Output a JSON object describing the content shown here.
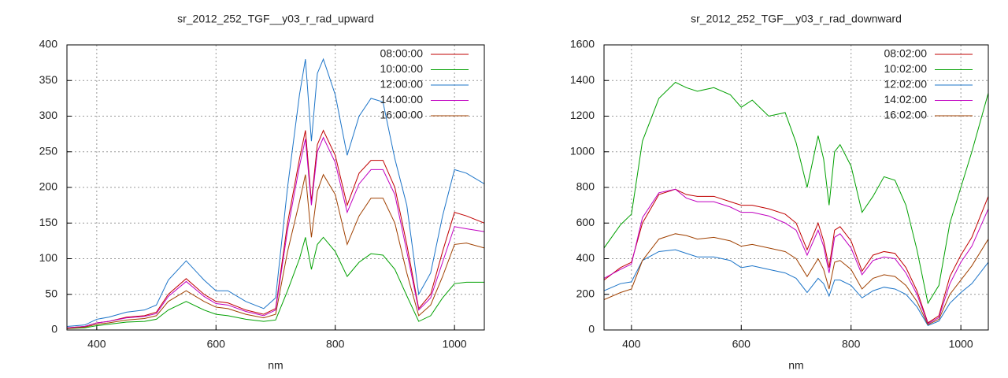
{
  "chart_data": [
    {
      "type": "line",
      "title": "sr_2012_252_TGF__y03_r_rad_upward",
      "xlabel": "nm",
      "xlim": [
        350,
        1050
      ],
      "xticks": [
        400,
        600,
        800,
        1000
      ],
      "ylim": [
        0,
        400
      ],
      "yticks": [
        0,
        50,
        100,
        150,
        200,
        250,
        300,
        350,
        400
      ],
      "grid": true,
      "legend": "top-right",
      "x": [
        350,
        380,
        400,
        420,
        450,
        480,
        500,
        520,
        550,
        580,
        600,
        620,
        650,
        680,
        700,
        720,
        740,
        750,
        760,
        770,
        780,
        800,
        820,
        840,
        860,
        880,
        900,
        920,
        940,
        960,
        980,
        1000,
        1020,
        1050
      ],
      "series": [
        {
          "name": "08:00:00",
          "color": "#c00000",
          "values": [
            3,
            5,
            10,
            12,
            18,
            20,
            25,
            50,
            72,
            50,
            40,
            38,
            28,
            22,
            30,
            150,
            240,
            280,
            180,
            260,
            280,
            245,
            175,
            220,
            238,
            238,
            200,
            120,
            30,
            50,
            110,
            165,
            160,
            150
          ]
        },
        {
          "name": "10:00:00",
          "color": "#00a000",
          "values": [
            2,
            3,
            6,
            8,
            11,
            12,
            15,
            28,
            40,
            28,
            22,
            20,
            15,
            12,
            14,
            55,
            100,
            130,
            85,
            120,
            130,
            110,
            75,
            95,
            107,
            105,
            85,
            48,
            12,
            20,
            45,
            65,
            67,
            67
          ]
        },
        {
          "name": "12:00:00",
          "color": "#1c74c8",
          "values": [
            5,
            7,
            15,
            18,
            25,
            28,
            35,
            70,
            97,
            70,
            55,
            55,
            40,
            30,
            45,
            200,
            330,
            380,
            265,
            360,
            380,
            330,
            245,
            300,
            325,
            320,
            240,
            175,
            50,
            80,
            160,
            225,
            220,
            205
          ]
        },
        {
          "name": "14:00:00",
          "color": "#c000c0",
          "values": [
            3,
            5,
            10,
            12,
            17,
            19,
            23,
            47,
            68,
            47,
            37,
            35,
            26,
            20,
            28,
            140,
            230,
            268,
            175,
            250,
            270,
            235,
            165,
            205,
            225,
            225,
            190,
            110,
            28,
            45,
            95,
            145,
            142,
            138
          ]
        },
        {
          "name": "16:00:00",
          "color": "#a04000",
          "values": [
            2,
            4,
            8,
            10,
            14,
            16,
            20,
            40,
            55,
            40,
            32,
            30,
            22,
            17,
            22,
            110,
            180,
            218,
            130,
            195,
            218,
            190,
            120,
            160,
            185,
            185,
            150,
            80,
            20,
            35,
            75,
            120,
            122,
            115
          ]
        }
      ]
    },
    {
      "type": "line",
      "title": "sr_2012_252_TGF__y03_r_rad_downward",
      "xlabel": "nm",
      "xlim": [
        350,
        1050
      ],
      "xticks": [
        400,
        600,
        800,
        1000
      ],
      "ylim": [
        0,
        1600
      ],
      "yticks": [
        0,
        200,
        400,
        600,
        800,
        1000,
        1200,
        1400,
        1600
      ],
      "grid": true,
      "legend": "top-right",
      "x": [
        350,
        380,
        400,
        420,
        450,
        480,
        500,
        520,
        550,
        580,
        600,
        620,
        650,
        680,
        700,
        720,
        740,
        750,
        760,
        770,
        780,
        800,
        820,
        840,
        860,
        880,
        900,
        920,
        940,
        960,
        980,
        1000,
        1020,
        1050
      ],
      "series": [
        {
          "name": "08:02:00",
          "color": "#c00000",
          "values": [
            280,
            350,
            380,
            600,
            760,
            790,
            760,
            750,
            750,
            720,
            700,
            700,
            680,
            650,
            600,
            450,
            600,
            500,
            350,
            560,
            580,
            500,
            330,
            420,
            440,
            430,
            350,
            220,
            40,
            80,
            300,
            420,
            520,
            750
          ]
        },
        {
          "name": "10:02:00",
          "color": "#00a000",
          "values": [
            460,
            590,
            650,
            1060,
            1300,
            1390,
            1360,
            1340,
            1360,
            1320,
            1250,
            1290,
            1200,
            1220,
            1050,
            800,
            1090,
            960,
            700,
            1000,
            1040,
            920,
            660,
            750,
            860,
            840,
            700,
            450,
            150,
            250,
            600,
            800,
            1000,
            1330
          ]
        },
        {
          "name": "12:02:00",
          "color": "#1c74c8",
          "values": [
            220,
            260,
            270,
            390,
            440,
            450,
            430,
            410,
            410,
            390,
            350,
            360,
            340,
            320,
            290,
            210,
            290,
            260,
            190,
            280,
            280,
            250,
            180,
            220,
            240,
            230,
            200,
            130,
            25,
            50,
            150,
            210,
            260,
            380
          ]
        },
        {
          "name": "14:02:00",
          "color": "#c000c0",
          "values": [
            290,
            340,
            370,
            630,
            770,
            790,
            740,
            720,
            720,
            690,
            660,
            660,
            640,
            600,
            560,
            420,
            560,
            470,
            320,
            520,
            540,
            460,
            310,
            390,
            410,
            400,
            320,
            200,
            35,
            70,
            260,
            380,
            470,
            680
          ]
        },
        {
          "name": "16:02:00",
          "color": "#a04000",
          "values": [
            170,
            210,
            230,
            390,
            510,
            540,
            530,
            510,
            520,
            500,
            470,
            480,
            460,
            440,
            400,
            300,
            400,
            340,
            230,
            380,
            390,
            340,
            230,
            290,
            310,
            300,
            250,
            160,
            30,
            60,
            200,
            280,
            360,
            510
          ]
        }
      ]
    }
  ]
}
